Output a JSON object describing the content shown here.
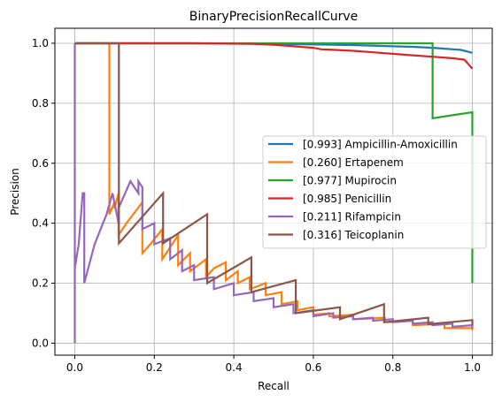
{
  "chart_data": {
    "type": "line",
    "title": "BinaryPrecisionRecallCurve",
    "xlabel": "Recall",
    "ylabel": "Precision",
    "xlim": [
      -0.05,
      1.05
    ],
    "ylim": [
      -0.04,
      1.05
    ],
    "xticks": [
      "0.0",
      "0.2",
      "0.4",
      "0.6",
      "0.8",
      "1.0"
    ],
    "yticks": [
      "0.0",
      "0.2",
      "0.4",
      "0.6",
      "0.8",
      "1.0"
    ],
    "grid": true,
    "legend_position": "center-right",
    "series": [
      {
        "name": "[0.993] Ampicillin-Amoxicillin",
        "color": "#1f77b4",
        "x": [
          0.0,
          0.3,
          0.5,
          0.6,
          0.7,
          0.8,
          0.85,
          0.9,
          0.93,
          0.95,
          0.97,
          0.98,
          1.0
        ],
        "y": [
          1.0,
          1.0,
          0.998,
          0.996,
          0.994,
          0.99,
          0.988,
          0.985,
          0.982,
          0.98,
          0.978,
          0.975,
          0.968
        ]
      },
      {
        "name": "[0.260] Ertapenem",
        "color": "#ff7f0e",
        "x": [
          0.0,
          0.087,
          0.087,
          0.1,
          0.1,
          0.11,
          0.11,
          0.13,
          0.17,
          0.17,
          0.19,
          0.22,
          0.22,
          0.24,
          0.26,
          0.26,
          0.29,
          0.29,
          0.33,
          0.33,
          0.35,
          0.38,
          0.38,
          0.41,
          0.41,
          0.44,
          0.44,
          0.48,
          0.48,
          0.52,
          0.52,
          0.56,
          0.56,
          0.6,
          0.6,
          0.64,
          0.64,
          0.7,
          0.7,
          0.78,
          0.78,
          0.85,
          0.85,
          0.93,
          0.93,
          1.0,
          1.0
        ],
        "y": [
          1.0,
          1.0,
          0.43,
          0.47,
          0.45,
          0.5,
          0.36,
          0.4,
          0.47,
          0.3,
          0.33,
          0.38,
          0.28,
          0.32,
          0.36,
          0.26,
          0.3,
          0.24,
          0.28,
          0.22,
          0.25,
          0.27,
          0.21,
          0.24,
          0.2,
          0.22,
          0.18,
          0.2,
          0.16,
          0.17,
          0.13,
          0.14,
          0.11,
          0.12,
          0.095,
          0.1,
          0.09,
          0.095,
          0.08,
          0.085,
          0.07,
          0.075,
          0.06,
          0.065,
          0.05,
          0.05,
          0.043
        ]
      },
      {
        "name": "[0.977] Mupirocin",
        "color": "#2ca02c",
        "x": [
          0.0,
          0.3,
          0.5,
          0.7,
          0.8,
          0.85,
          0.9,
          0.9,
          0.95,
          1.0,
          1.0,
          1.0
        ],
        "y": [
          1.0,
          1.0,
          1.0,
          1.0,
          1.0,
          1.0,
          1.0,
          0.75,
          0.76,
          0.77,
          0.5,
          0.2
        ]
      },
      {
        "name": "[0.985] Penicillin",
        "color": "#d62728",
        "x": [
          0.0,
          0.3,
          0.45,
          0.5,
          0.55,
          0.6,
          0.62,
          0.65,
          0.7,
          0.75,
          0.8,
          0.85,
          0.9,
          0.95,
          0.98,
          0.99,
          1.0
        ],
        "y": [
          1.0,
          1.0,
          0.998,
          0.995,
          0.99,
          0.985,
          0.98,
          0.978,
          0.975,
          0.97,
          0.965,
          0.96,
          0.955,
          0.95,
          0.945,
          0.93,
          0.915
        ]
      },
      {
        "name": "[0.211] Rifampicin",
        "color": "#9467bd",
        "x": [
          0.0,
          0.0,
          0.0,
          0.01,
          0.02,
          0.024,
          0.024,
          0.05,
          0.08,
          0.095,
          0.11,
          0.11,
          0.14,
          0.16,
          0.16,
          0.17,
          0.17,
          0.2,
          0.2,
          0.24,
          0.24,
          0.27,
          0.27,
          0.3,
          0.3,
          0.35,
          0.35,
          0.4,
          0.4,
          0.45,
          0.45,
          0.5,
          0.5,
          0.55,
          0.55,
          0.6,
          0.6,
          0.65,
          0.65,
          0.7,
          0.7,
          0.75,
          0.75,
          0.8,
          0.8,
          0.85,
          0.85,
          0.9,
          0.9,
          0.95,
          0.95,
          1.0,
          1.0
        ],
        "y": [
          0.0,
          1.0,
          0.25,
          0.33,
          0.5,
          0.5,
          0.2,
          0.33,
          0.43,
          0.5,
          0.4,
          0.45,
          0.54,
          0.5,
          0.54,
          0.52,
          0.38,
          0.4,
          0.33,
          0.35,
          0.28,
          0.31,
          0.24,
          0.26,
          0.21,
          0.22,
          0.18,
          0.2,
          0.16,
          0.17,
          0.14,
          0.15,
          0.12,
          0.13,
          0.1,
          0.11,
          0.09,
          0.1,
          0.085,
          0.09,
          0.08,
          0.085,
          0.075,
          0.08,
          0.07,
          0.075,
          0.065,
          0.07,
          0.06,
          0.065,
          0.055,
          0.06,
          0.05
        ]
      },
      {
        "name": "[0.316] Teicoplanin",
        "color": "#8c564b",
        "x": [
          0.0,
          0.111,
          0.111,
          0.222,
          0.222,
          0.333,
          0.333,
          0.444,
          0.444,
          0.556,
          0.556,
          0.667,
          0.667,
          0.778,
          0.778,
          0.889,
          0.889,
          1.0,
          1.0
        ],
        "y": [
          1.0,
          1.0,
          0.333,
          0.5,
          0.333,
          0.43,
          0.2,
          0.286,
          0.17,
          0.21,
          0.1,
          0.12,
          0.08,
          0.13,
          0.07,
          0.085,
          0.063,
          0.077,
          0.06
        ]
      }
    ]
  }
}
